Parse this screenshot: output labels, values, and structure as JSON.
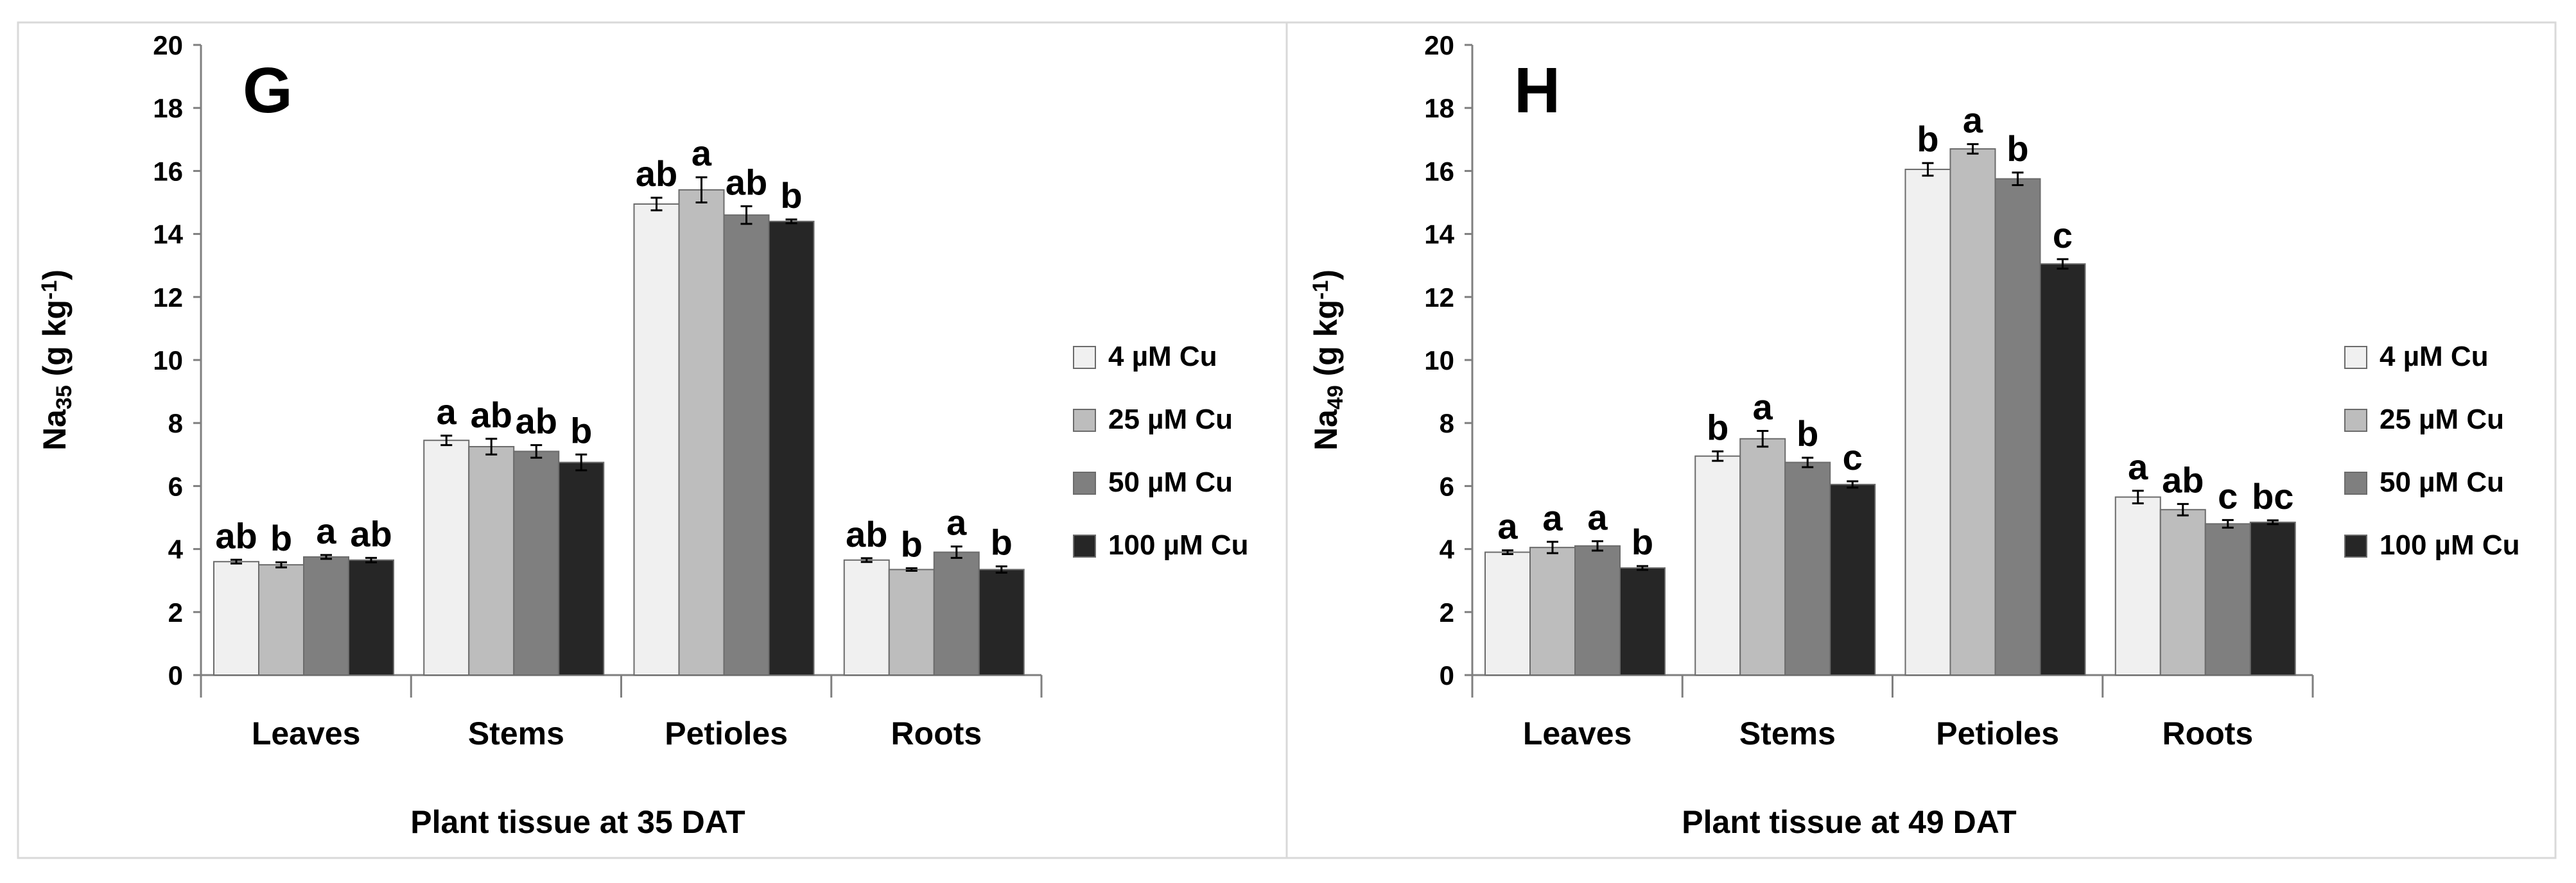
{
  "legend": {
    "entries": [
      "4 µM Cu",
      "25 µM Cu",
      "50 µM Cu",
      "100 µM Cu"
    ],
    "colors": [
      "#f0f0f0",
      "#bdbdbd",
      "#7f7f7f",
      "#262626"
    ]
  },
  "chart_data": [
    {
      "type": "bar",
      "panel_letter": "G",
      "categories": [
        "Leaves",
        "Stems",
        "Petioles",
        "Roots"
      ],
      "xlabel": "Plant tissue at 35 DAT",
      "ylabel_main": "Na",
      "ylabel_sub": "35",
      "ylabel_units_pre": " (g kg",
      "ylabel_units_sup": "-1",
      "ylabel_units_post": ")",
      "ylim": [
        0,
        20
      ],
      "yticks": [
        "0",
        "2",
        "4",
        "6",
        "8",
        "10",
        "12",
        "14",
        "16",
        "18",
        "20"
      ],
      "series": [
        {
          "name": "4 µM Cu",
          "values": [
            3.6,
            7.45,
            14.95,
            3.65
          ],
          "errors": [
            0.06,
            0.15,
            0.2,
            0.06
          ],
          "letters": [
            "ab",
            "a",
            "ab",
            "ab"
          ]
        },
        {
          "name": "25 µM Cu",
          "values": [
            3.5,
            7.25,
            15.4,
            3.35
          ],
          "errors": [
            0.08,
            0.25,
            0.4,
            0.04
          ],
          "letters": [
            "b",
            "ab",
            "a",
            "b"
          ]
        },
        {
          "name": "50 µM Cu",
          "values": [
            3.75,
            7.1,
            14.6,
            3.9
          ],
          "errors": [
            0.06,
            0.2,
            0.28,
            0.18
          ],
          "letters": [
            "a",
            "ab",
            "ab",
            "a"
          ]
        },
        {
          "name": "100 µM Cu",
          "values": [
            3.65,
            6.75,
            14.4,
            3.35
          ],
          "errors": [
            0.07,
            0.25,
            0.06,
            0.1
          ],
          "letters": [
            "ab",
            "b",
            "b",
            "b"
          ]
        }
      ]
    },
    {
      "type": "bar",
      "panel_letter": "H",
      "categories": [
        "Leaves",
        "Stems",
        "Petioles",
        "Roots"
      ],
      "xlabel": "Plant tissue at 49 DAT",
      "ylabel_main": "Na",
      "ylabel_sub": "49",
      "ylabel_units_pre": " (g kg",
      "ylabel_units_sup": "-1",
      "ylabel_units_post": ")",
      "ylim": [
        0,
        20
      ],
      "yticks": [
        "0",
        "2",
        "4",
        "6",
        "8",
        "10",
        "12",
        "14",
        "16",
        "18",
        "20"
      ],
      "series": [
        {
          "name": "4 µM Cu",
          "values": [
            3.9,
            6.95,
            16.05,
            5.65
          ],
          "errors": [
            0.06,
            0.15,
            0.2,
            0.2
          ],
          "letters": [
            "a",
            "b",
            "b",
            "a"
          ]
        },
        {
          "name": "25 µM Cu",
          "values": [
            4.05,
            7.5,
            16.7,
            5.25
          ],
          "errors": [
            0.18,
            0.25,
            0.15,
            0.18
          ],
          "letters": [
            "a",
            "a",
            "a",
            "ab"
          ]
        },
        {
          "name": "50 µM Cu",
          "values": [
            4.1,
            6.75,
            15.75,
            4.8
          ],
          "errors": [
            0.15,
            0.15,
            0.2,
            0.12
          ],
          "letters": [
            "a",
            "b",
            "b",
            "c"
          ]
        },
        {
          "name": "100 µM Cu",
          "values": [
            3.4,
            6.05,
            13.05,
            4.85
          ],
          "errors": [
            0.06,
            0.1,
            0.15,
            0.06
          ],
          "letters": [
            "b",
            "c",
            "c",
            "bc"
          ]
        }
      ]
    }
  ]
}
